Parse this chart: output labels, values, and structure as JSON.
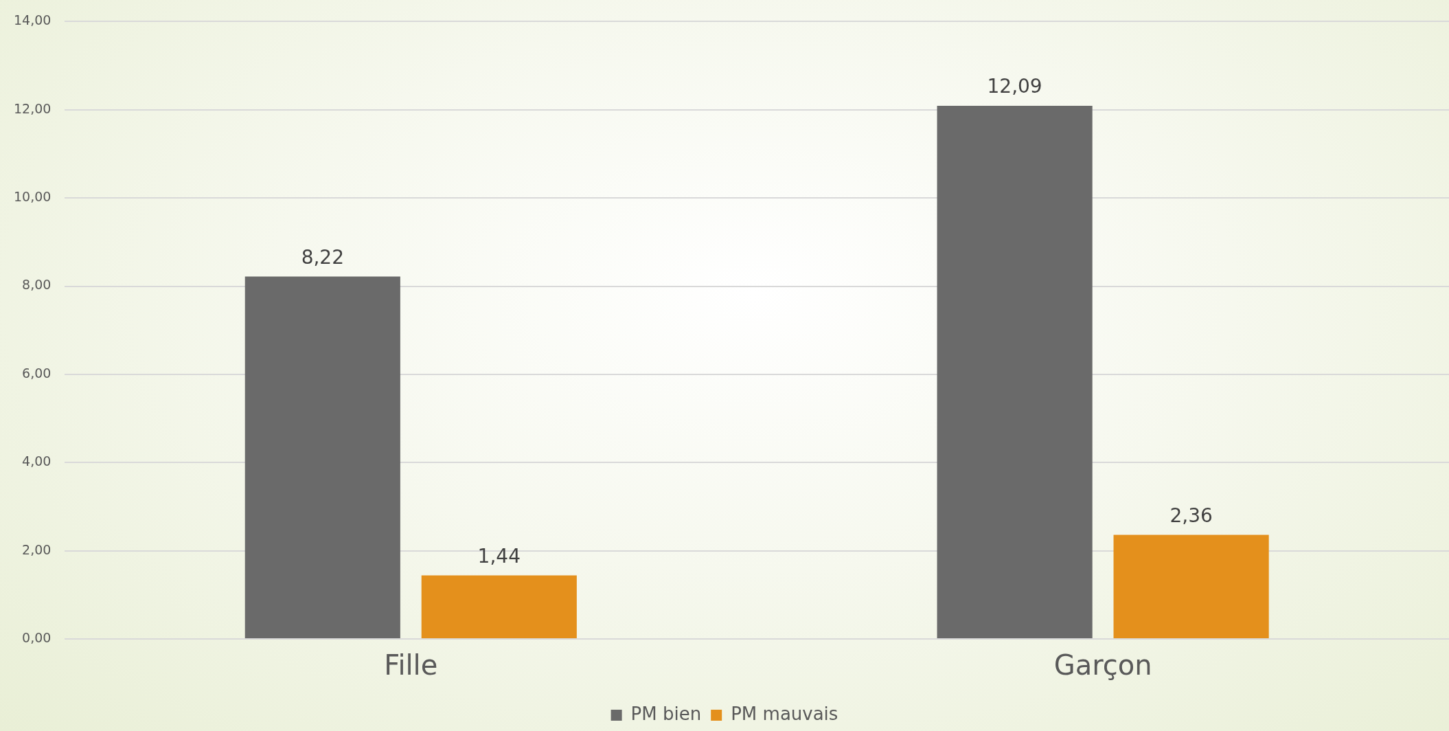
{
  "chart_data": {
    "type": "bar",
    "categories": [
      "Fille",
      "Garçon"
    ],
    "series": [
      {
        "name": "PM bien",
        "color": "#6a6a6a",
        "values": [
          8.22,
          12.09
        ],
        "value_labels": [
          "8,22",
          "12,09"
        ]
      },
      {
        "name": "PM mauvais",
        "color": "#e4901c",
        "values": [
          1.44,
          2.36
        ],
        "value_labels": [
          "1,44",
          "2,36"
        ]
      }
    ],
    "ylim": [
      0,
      14
    ],
    "yticks": [
      {
        "value": 0,
        "label": "0,00"
      },
      {
        "value": 2,
        "label": "2,00"
      },
      {
        "value": 4,
        "label": "4,00"
      },
      {
        "value": 6,
        "label": "6,00"
      },
      {
        "value": 8,
        "label": "8,00"
      },
      {
        "value": 10,
        "label": "10,00"
      },
      {
        "value": 12,
        "label": "12,00"
      },
      {
        "value": 14,
        "label": "14,00"
      }
    ],
    "grid": "y",
    "legend": "bottom"
  }
}
